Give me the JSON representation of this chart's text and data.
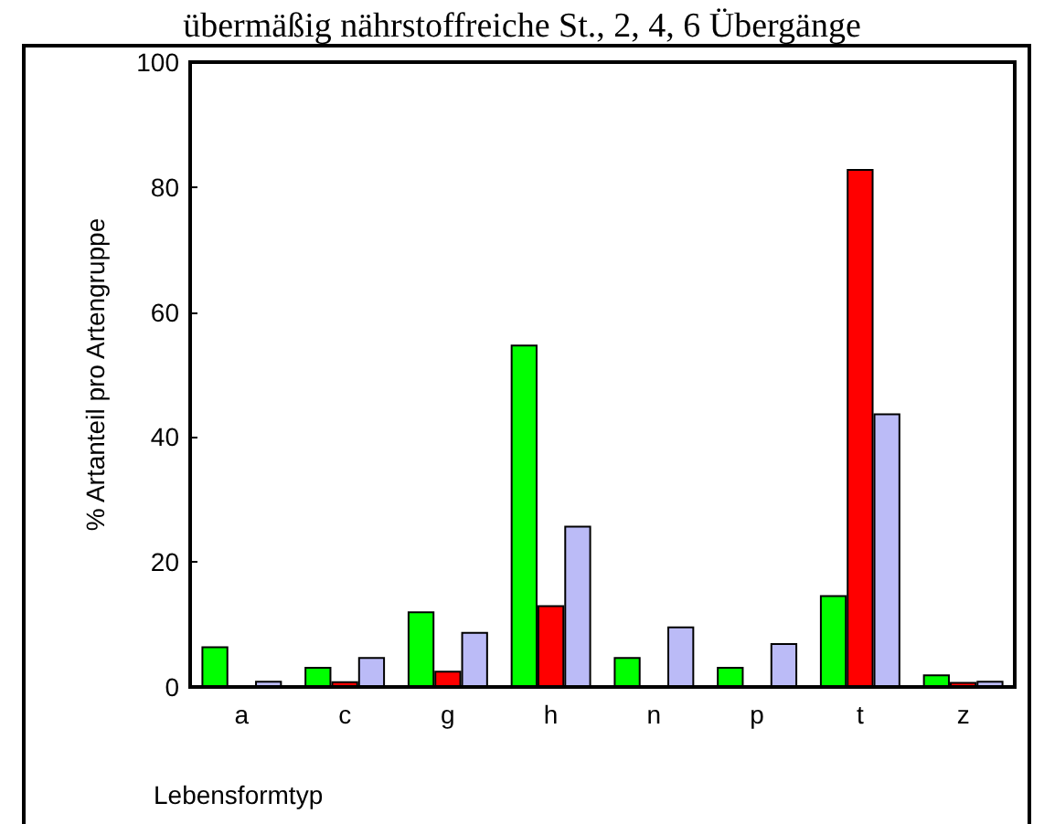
{
  "chart_data": {
    "type": "bar",
    "title": "übermäßig nährstoffreiche St., 2, 4, 6 Übergänge",
    "xlabel": "Lebensformtyp",
    "ylabel": "% Artanteil pro Artengruppe",
    "categories": [
      "a",
      "c",
      "g",
      "h",
      "n",
      "p",
      "t",
      "z"
    ],
    "series": [
      {
        "color": "#00ff00",
        "values": [
          6.5,
          3.2,
          12.1,
          54.8,
          4.8,
          3.2,
          14.7,
          2.0
        ]
      },
      {
        "color": "#ff0000",
        "values": [
          0,
          0.9,
          2.6,
          13.1,
          0,
          0,
          82.9,
          0.8
        ]
      },
      {
        "color": "#bbbbf7",
        "values": [
          1.0,
          4.8,
          8.8,
          25.8,
          9.7,
          7.0,
          43.8,
          1.0
        ]
      }
    ],
    "ylim": [
      0,
      100
    ],
    "yticks": [
      0,
      20,
      40,
      60,
      80,
      100
    ],
    "grid": false
  }
}
